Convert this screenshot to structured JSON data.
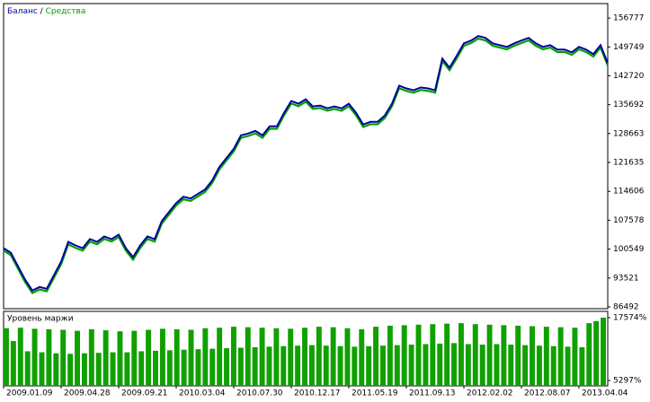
{
  "chart_data": [
    {
      "type": "line",
      "legend_separator": "/",
      "series": [
        {
          "name": "Баланс",
          "color": "#0000a0",
          "values": [
            100779,
            99681,
            96387,
            93093,
            90458,
            91336,
            90897,
            94191,
            97485,
            102316,
            101438,
            100779,
            102975,
            102316,
            103634,
            102975,
            104073,
            100779,
            98583,
            101438,
            103634,
            102975,
            107367,
            109563,
            111759,
            113296,
            112857,
            113955,
            115053,
            117249,
            120543,
            122739,
            124935,
            128229,
            128668,
            129327,
            128229,
            130425,
            130425,
            133719,
            136574,
            135915,
            137013,
            135256,
            135476,
            134817,
            135256,
            134817,
            135915,
            133719,
            130864,
            131523,
            131523,
            133060,
            135915,
            140307,
            139648,
            139209,
            139868,
            139648,
            139209,
            146895,
            144699,
            147554,
            150628,
            151287,
            152385,
            151946,
            150628,
            150189,
            149750,
            150628,
            151287,
            151946,
            150628,
            149750,
            150189,
            149091,
            149091,
            148432,
            149750,
            149091,
            147993,
            150189,
            145797
          ]
        },
        {
          "name": "Средства",
          "color": "#00a000",
          "values": [
            100179,
            99081,
            95787,
            92493,
            89858,
            90736,
            90297,
            93591,
            96885,
            101716,
            100838,
            100179,
            102375,
            101716,
            103034,
            102375,
            103473,
            100179,
            97983,
            100838,
            103034,
            102375,
            106767,
            108963,
            111159,
            112696,
            112257,
            113355,
            114453,
            116649,
            119943,
            122139,
            124335,
            127629,
            128068,
            128727,
            127629,
            129825,
            129825,
            133119,
            135974,
            135315,
            136413,
            134656,
            134876,
            134217,
            134656,
            134217,
            135315,
            133119,
            130264,
            130923,
            130923,
            132460,
            135315,
            139707,
            139048,
            138609,
            139268,
            139048,
            138609,
            146295,
            144099,
            146954,
            150028,
            150687,
            151785,
            151346,
            150028,
            149589,
            149150,
            150028,
            150687,
            151346,
            150028,
            149150,
            149589,
            148491,
            148491,
            147832,
            149150,
            148491,
            147393,
            149589,
            145197
          ]
        }
      ],
      "xlim": [
        0,
        84
      ],
      "ylim": [
        86053,
        160291
      ],
      "yticks": [
        156777,
        149749,
        142720,
        135692,
        128663,
        121635,
        114606,
        107578,
        100549,
        93521,
        86492
      ]
    },
    {
      "type": "bar",
      "title": "Уровень маржи",
      "color": "#10a000",
      "values": [
        15500,
        13000,
        15600,
        11000,
        15400,
        10800,
        15300,
        10600,
        15200,
        10500,
        15000,
        10600,
        15300,
        10700,
        15100,
        10800,
        14900,
        10800,
        15000,
        11000,
        15200,
        11100,
        15400,
        11200,
        15300,
        11300,
        15200,
        11400,
        15500,
        11500,
        15600,
        11600,
        15800,
        11700,
        15700,
        11800,
        15600,
        11900,
        15500,
        12000,
        15400,
        12100,
        15600,
        12200,
        15800,
        12100,
        15700,
        12000,
        15500,
        11900,
        15300,
        12000,
        15800,
        12100,
        16000,
        12200,
        16100,
        12300,
        16200,
        12400,
        16300,
        12500,
        16400,
        12600,
        16500,
        12400,
        16300,
        12300,
        16200,
        12400,
        16100,
        12300,
        16000,
        12200,
        15900,
        12100,
        15800,
        12000,
        15700,
        11900,
        15600,
        11800,
        16500,
        16900,
        17574
      ],
      "xlim": [
        0,
        84
      ],
      "ylim": [
        4245,
        18799
      ],
      "yticks": [
        {
          "value": 17574,
          "label": "17574%"
        },
        {
          "value": 5297,
          "label": "5297%"
        }
      ],
      "xticks": [
        {
          "value": 0,
          "label": "2009.01.09"
        },
        {
          "value": 8,
          "label": "2009.04.28"
        },
        {
          "value": 16,
          "label": "2009.09.21"
        },
        {
          "value": 24,
          "label": "2010.03.04"
        },
        {
          "value": 32,
          "label": "2010.07.30"
        },
        {
          "value": 40,
          "label": "2010.12.17"
        },
        {
          "value": 48,
          "label": "2011.05.19"
        },
        {
          "value": 56,
          "label": "2011.09.13"
        },
        {
          "value": 64,
          "label": "2012.02.02"
        },
        {
          "value": 72,
          "label": "2012.08.07"
        },
        {
          "value": 80,
          "label": "2013.04.04"
        }
      ]
    }
  ]
}
